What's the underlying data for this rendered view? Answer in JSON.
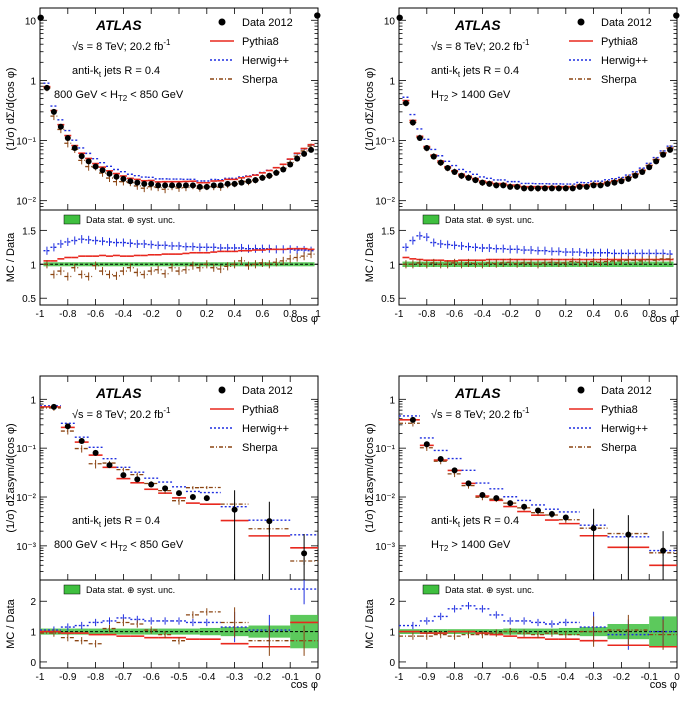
{
  "common": {
    "atlas": "ATLAS",
    "energy": "√s = 8 TeV; 20.2 fb",
    "energy_sup": "-1",
    "jets_prefix": "anti-k",
    "jets_sub": "t",
    "jets_suffix": " jets R = 0.4",
    "legend": [
      "Data 2012",
      "Pythia8",
      "Herwig++",
      "Sherpa"
    ],
    "band_label": "Data stat. ⊕ syst. unc.",
    "ratio_ylabel": "MC / Data",
    "xlabel": "cos φ",
    "colors": {
      "data": "#000000",
      "pythia": "#e8281e",
      "herwig": "#1f2ee0",
      "sherpa": "#8b4513",
      "band": "#3fbf3f"
    }
  },
  "chart_data": [
    {
      "type": "scatter",
      "title": "800 GeV < HT2 < 850 GeV",
      "cut_main": "800 GeV < H",
      "cut_sub": "T2",
      "cut_post": " < 850 GeV",
      "ylabel": "(1/σ) dΣ/d(cos φ)",
      "xlim": [
        -1,
        1
      ],
      "ylim": [
        0.007,
        16
      ],
      "ylog": true,
      "ratio_ylim": [
        0.4,
        1.8
      ],
      "xticks": [
        "-1",
        "-0.8",
        "-0.6",
        "-0.4",
        "-0.2",
        "0",
        "0.2",
        "0.4",
        "0.6",
        "0.8",
        "1"
      ],
      "yticks": [
        "10⁻²",
        "10⁻¹",
        "1",
        "10"
      ],
      "ratio_yticks": [
        "0.5",
        "1",
        "1.5"
      ],
      "x": [
        -0.95,
        -0.9,
        -0.85,
        -0.8,
        -0.75,
        -0.7,
        -0.65,
        -0.6,
        -0.55,
        -0.5,
        -0.45,
        -0.4,
        -0.35,
        -0.3,
        -0.25,
        -0.2,
        -0.15,
        -0.1,
        -0.05,
        0,
        0.05,
        0.1,
        0.15,
        0.2,
        0.25,
        0.3,
        0.35,
        0.4,
        0.45,
        0.5,
        0.55,
        0.6,
        0.65,
        0.7,
        0.75,
        0.8,
        0.85,
        0.9,
        0.95
      ],
      "edge_x": [
        -0.995,
        0.995
      ],
      "edge_y": [
        11,
        12
      ],
      "data": [
        0.75,
        0.3,
        0.17,
        0.11,
        0.075,
        0.055,
        0.045,
        0.037,
        0.032,
        0.028,
        0.025,
        0.023,
        0.021,
        0.02,
        0.019,
        0.019,
        0.018,
        0.018,
        0.018,
        0.018,
        0.018,
        0.018,
        0.017,
        0.017,
        0.018,
        0.018,
        0.019,
        0.019,
        0.02,
        0.021,
        0.022,
        0.024,
        0.026,
        0.029,
        0.033,
        0.04,
        0.05,
        0.06,
        0.07
      ],
      "ratio": {
        "pythia": [
          1.05,
          1.05,
          1.08,
          1.1,
          1.1,
          1.12,
          1.12,
          1.12,
          1.13,
          1.12,
          1.13,
          1.12,
          1.12,
          1.13,
          1.13,
          1.14,
          1.14,
          1.15,
          1.15,
          1.15,
          1.16,
          1.17,
          1.17,
          1.17,
          1.18,
          1.19,
          1.19,
          1.19,
          1.2,
          1.2,
          1.21,
          1.21,
          1.22,
          1.22,
          1.22,
          1.23,
          1.23,
          1.23,
          1.22
        ],
        "herwig": [
          1.2,
          1.25,
          1.3,
          1.33,
          1.35,
          1.37,
          1.36,
          1.35,
          1.34,
          1.33,
          1.32,
          1.32,
          1.31,
          1.3,
          1.3,
          1.29,
          1.28,
          1.28,
          1.27,
          1.27,
          1.26,
          1.26,
          1.25,
          1.25,
          1.25,
          1.24,
          1.24,
          1.24,
          1.24,
          1.23,
          1.23,
          1.23,
          1.23,
          1.22,
          1.22,
          1.22,
          1.21,
          1.21,
          1.2
        ],
        "sherpa": [
          1.0,
          0.85,
          0.9,
          0.82,
          0.95,
          0.85,
          0.82,
          0.98,
          0.9,
          0.85,
          0.83,
          0.9,
          0.95,
          0.88,
          0.85,
          0.9,
          0.92,
          0.86,
          0.95,
          0.9,
          0.92,
          0.98,
          0.95,
          1.0,
          0.95,
          0.93,
          0.97,
          1.0,
          1.05,
          0.98,
          1.0,
          1.02,
          1.0,
          1.03,
          1.05,
          1.08,
          1.1,
          1.12,
          1.15
        ]
      },
      "band": [
        0.03,
        0.03,
        0.03,
        0.03,
        0.03,
        0.03,
        0.03,
        0.03,
        0.03,
        0.03,
        0.03,
        0.03,
        0.03,
        0.03,
        0.03,
        0.03,
        0.03,
        0.03,
        0.03,
        0.03,
        0.03,
        0.03,
        0.03,
        0.03,
        0.03,
        0.03,
        0.03,
        0.03,
        0.03,
        0.03,
        0.03,
        0.03,
        0.03,
        0.03,
        0.03,
        0.03,
        0.03,
        0.03,
        0.03
      ]
    },
    {
      "type": "scatter",
      "title": "HT2 > 1400 GeV",
      "cut_main": "H",
      "cut_sub": "T2",
      "cut_post": " > 1400 GeV",
      "ylabel": "(1/σ) dΣ/d(cos φ)",
      "xlim": [
        -1,
        1
      ],
      "ylim": [
        0.007,
        16
      ],
      "ylog": true,
      "ratio_ylim": [
        0.4,
        1.8
      ],
      "xticks": [
        "-1",
        "-0.8",
        "-0.6",
        "-0.4",
        "-0.2",
        "0",
        "0.2",
        "0.4",
        "0.6",
        "0.8",
        "1"
      ],
      "yticks": [
        "10⁻²",
        "10⁻¹",
        "1",
        "10"
      ],
      "ratio_yticks": [
        "0.5",
        "1",
        "1.5"
      ],
      "x": [
        -0.95,
        -0.9,
        -0.85,
        -0.8,
        -0.75,
        -0.7,
        -0.65,
        -0.6,
        -0.55,
        -0.5,
        -0.45,
        -0.4,
        -0.35,
        -0.3,
        -0.25,
        -0.2,
        -0.15,
        -0.1,
        -0.05,
        0,
        0.05,
        0.1,
        0.15,
        0.2,
        0.25,
        0.3,
        0.35,
        0.4,
        0.45,
        0.5,
        0.55,
        0.6,
        0.65,
        0.7,
        0.75,
        0.8,
        0.85,
        0.9,
        0.95
      ],
      "edge_x": [
        -0.995,
        0.995
      ],
      "edge_y": [
        11,
        12
      ],
      "data": [
        0.42,
        0.2,
        0.11,
        0.075,
        0.054,
        0.043,
        0.035,
        0.03,
        0.026,
        0.024,
        0.022,
        0.02,
        0.019,
        0.018,
        0.018,
        0.017,
        0.017,
        0.016,
        0.016,
        0.016,
        0.016,
        0.016,
        0.016,
        0.016,
        0.016,
        0.017,
        0.017,
        0.018,
        0.018,
        0.019,
        0.02,
        0.021,
        0.023,
        0.026,
        0.03,
        0.036,
        0.045,
        0.058,
        0.07
      ],
      "ratio": {
        "pythia": [
          1.1,
          1.08,
          1.07,
          1.06,
          1.06,
          1.06,
          1.05,
          1.05,
          1.06,
          1.06,
          1.06,
          1.06,
          1.07,
          1.07,
          1.07,
          1.07,
          1.07,
          1.07,
          1.07,
          1.07,
          1.07,
          1.07,
          1.07,
          1.07,
          1.07,
          1.07,
          1.07,
          1.07,
          1.07,
          1.07,
          1.07,
          1.07,
          1.07,
          1.07,
          1.07,
          1.07,
          1.07,
          1.07,
          1.07
        ],
        "herwig": [
          1.25,
          1.35,
          1.42,
          1.4,
          1.32,
          1.3,
          1.29,
          1.28,
          1.27,
          1.26,
          1.25,
          1.24,
          1.24,
          1.23,
          1.23,
          1.22,
          1.22,
          1.21,
          1.21,
          1.2,
          1.2,
          1.19,
          1.19,
          1.18,
          1.18,
          1.18,
          1.17,
          1.17,
          1.17,
          1.17,
          1.16,
          1.16,
          1.16,
          1.16,
          1.16,
          1.16,
          1.16,
          1.16,
          1.15
        ],
        "sherpa": [
          1.0,
          1.0,
          1.02,
          1.0,
          1.02,
          1.0,
          1.0,
          1.02,
          1.0,
          1.02,
          1.01,
          1.0,
          1.02,
          1.01,
          1.02,
          1.03,
          1.01,
          1.02,
          1.02,
          1.0,
          1.02,
          1.03,
          1.02,
          1.02,
          1.04,
          1.03,
          1.02,
          1.04,
          1.03,
          1.04,
          1.05,
          1.05,
          1.06,
          1.06,
          1.05,
          1.07,
          1.06,
          1.08,
          1.08
        ]
      },
      "band": [
        0.04,
        0.04,
        0.04,
        0.04,
        0.04,
        0.04,
        0.04,
        0.04,
        0.04,
        0.04,
        0.04,
        0.04,
        0.04,
        0.04,
        0.04,
        0.04,
        0.04,
        0.04,
        0.04,
        0.04,
        0.04,
        0.04,
        0.04,
        0.04,
        0.04,
        0.04,
        0.04,
        0.04,
        0.04,
        0.04,
        0.04,
        0.04,
        0.04,
        0.04,
        0.04,
        0.04,
        0.04,
        0.04,
        0.04
      ]
    },
    {
      "type": "scatter",
      "title": "800 GeV < HT2 < 850 GeV",
      "cut_main": "800 GeV < H",
      "cut_sub": "T2",
      "cut_post": " < 850 GeV",
      "ylabel": "(1/σ) dΣasym/d(cos φ)",
      "xlim": [
        -1,
        0
      ],
      "ylim": [
        0.0002,
        3
      ],
      "ylog": true,
      "ratio_ylim": [
        -0.2,
        2.7
      ],
      "xticks": [
        "-1",
        "-0.9",
        "-0.8",
        "-0.7",
        "-0.6",
        "-0.5",
        "-0.4",
        "-0.3",
        "-0.2",
        "-0.1",
        "0"
      ],
      "yticks": [
        "10⁻³",
        "10⁻²",
        "10⁻¹",
        "1"
      ],
      "ratio_yticks": [
        "0",
        "1",
        "2"
      ],
      "x": [
        -0.95,
        -0.9,
        -0.85,
        -0.8,
        -0.75,
        -0.7,
        -0.65,
        -0.6,
        -0.55,
        -0.5,
        -0.45,
        -0.4,
        -0.3,
        -0.175,
        -0.05
      ],
      "bin_lo": [
        -1,
        -0.925,
        -0.875,
        -0.825,
        -0.775,
        -0.725,
        -0.675,
        -0.625,
        -0.575,
        -0.525,
        -0.475,
        -0.425,
        -0.35,
        -0.25,
        -0.1
      ],
      "bin_hi": [
        -0.925,
        -0.875,
        -0.825,
        -0.775,
        -0.725,
        -0.675,
        -0.625,
        -0.575,
        -0.525,
        -0.475,
        -0.425,
        -0.35,
        -0.25,
        -0.1,
        0
      ],
      "data": [
        0.7,
        0.28,
        0.14,
        0.08,
        0.045,
        0.028,
        0.023,
        0.018,
        0.015,
        0.012,
        0.01,
        0.0095,
        0.0055,
        0.0032,
        0.0007
      ],
      "ratio": {
        "pythia": [
          1.0,
          0.95,
          0.95,
          0.9,
          0.9,
          0.85,
          0.85,
          0.8,
          0.8,
          0.8,
          0.75,
          0.75,
          0.6,
          0.5,
          1.3
        ],
        "herwig": [
          1.05,
          1.15,
          1.2,
          1.3,
          1.35,
          1.45,
          1.4,
          1.35,
          1.35,
          1.35,
          1.3,
          1.3,
          1.15,
          1.05,
          2.4
        ],
        "sherpa": [
          0.95,
          0.8,
          0.7,
          0.6,
          1.1,
          1.3,
          1.25,
          1.05,
          0.9,
          0.7,
          1.55,
          1.65,
          1.3,
          0.7,
          0.7
        ]
      },
      "band": [
        0.1,
        0.1,
        0.1,
        0.1,
        0.1,
        0.1,
        0.1,
        0.1,
        0.1,
        0.1,
        0.1,
        0.12,
        0.15,
        0.2,
        0.55
      ]
    },
    {
      "type": "scatter",
      "title": "HT2 > 1400 GeV",
      "cut_main": "H",
      "cut_sub": "T2",
      "cut_post": " > 1400 GeV",
      "ylabel": "(1/σ) dΣasym/d(cos φ)",
      "xlim": [
        -1,
        0
      ],
      "ylim": [
        0.0002,
        3
      ],
      "ylog": true,
      "ratio_ylim": [
        -0.2,
        2.7
      ],
      "xticks": [
        "-1",
        "-0.9",
        "-0.8",
        "-0.7",
        "-0.6",
        "-0.5",
        "-0.4",
        "-0.3",
        "-0.2",
        "-0.1",
        "0"
      ],
      "yticks": [
        "10⁻³",
        "10⁻²",
        "10⁻¹",
        "1"
      ],
      "ratio_yticks": [
        "0",
        "1",
        "2"
      ],
      "x": [
        -0.95,
        -0.9,
        -0.85,
        -0.8,
        -0.75,
        -0.7,
        -0.65,
        -0.6,
        -0.55,
        -0.5,
        -0.45,
        -0.4,
        -0.3,
        -0.175,
        -0.05
      ],
      "bin_lo": [
        -1,
        -0.925,
        -0.875,
        -0.825,
        -0.775,
        -0.725,
        -0.675,
        -0.625,
        -0.575,
        -0.525,
        -0.475,
        -0.425,
        -0.35,
        -0.25,
        -0.1
      ],
      "bin_hi": [
        -0.925,
        -0.875,
        -0.825,
        -0.775,
        -0.725,
        -0.675,
        -0.625,
        -0.575,
        -0.525,
        -0.475,
        -0.425,
        -0.35,
        -0.25,
        -0.1,
        0
      ],
      "data": [
        0.38,
        0.12,
        0.06,
        0.035,
        0.019,
        0.011,
        0.0095,
        0.0075,
        0.0063,
        0.0053,
        0.0045,
        0.0038,
        0.0023,
        0.0017,
        0.0008
      ],
      "ratio": {
        "pythia": [
          1.0,
          0.95,
          0.95,
          1.0,
          1.0,
          0.95,
          0.9,
          0.85,
          0.8,
          0.8,
          0.75,
          0.75,
          0.7,
          0.55,
          0.5
        ],
        "herwig": [
          1.2,
          1.35,
          1.5,
          1.75,
          1.85,
          1.75,
          1.55,
          1.35,
          1.35,
          1.3,
          1.25,
          1.3,
          1.15,
          0.9,
          1.0
        ],
        "sherpa": [
          0.85,
          0.85,
          0.9,
          0.85,
          0.9,
          0.9,
          0.95,
          1.0,
          0.95,
          0.9,
          0.95,
          0.9,
          1.0,
          1.05,
          0.9
        ]
      },
      "band": [
        0.08,
        0.08,
        0.08,
        0.08,
        0.08,
        0.08,
        0.08,
        0.1,
        0.1,
        0.1,
        0.1,
        0.12,
        0.15,
        0.25,
        0.5
      ]
    }
  ]
}
